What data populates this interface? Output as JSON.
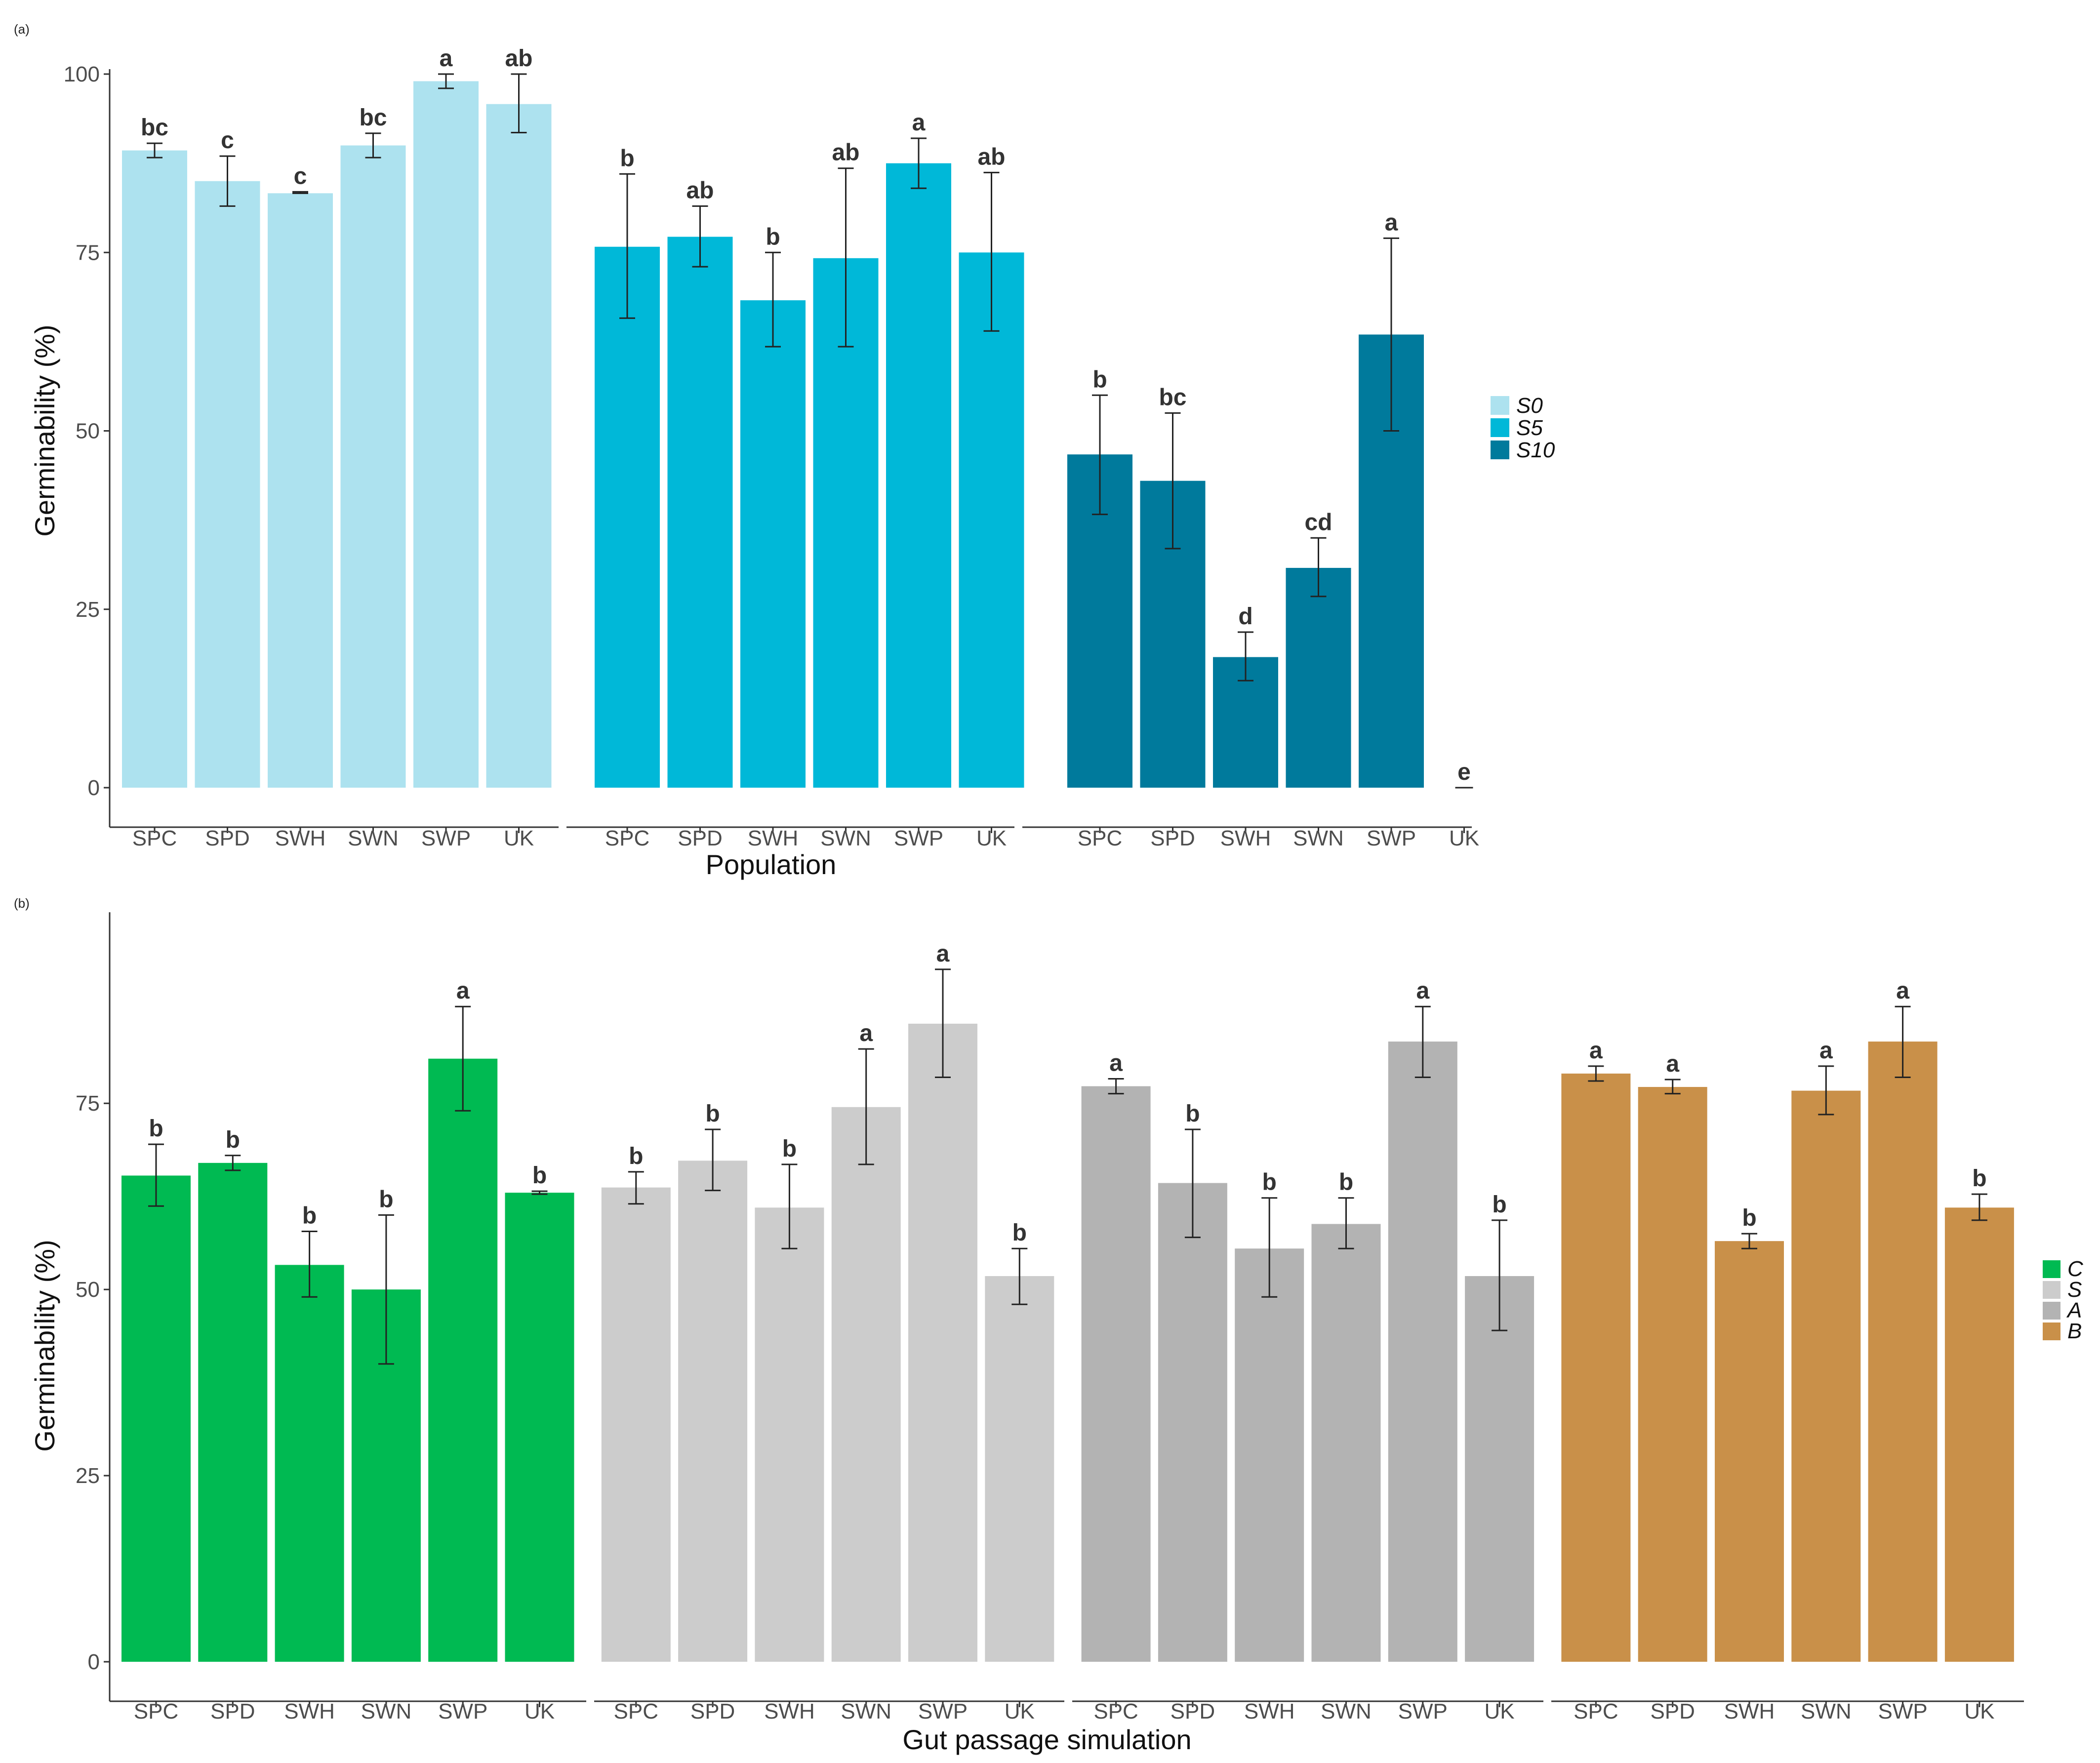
{
  "chart_data": [
    {
      "type": "bar",
      "panel_label": "(a)",
      "xlabel": "Population",
      "ylabel": "Germinability (%)",
      "ylim": [
        0,
        100
      ],
      "yticks": [
        "0",
        "25",
        "50",
        "75",
        "100"
      ],
      "legend_position": "right",
      "categories": [
        "SPC",
        "SPD",
        "SWH",
        "SWN",
        "SWP",
        "UK"
      ],
      "series": [
        {
          "name": "S0",
          "color": "#ADE2EF",
          "values": [
            89.3,
            85.0,
            83.3,
            90.0,
            99.0,
            95.8
          ],
          "err_low": [
            88.3,
            81.5,
            83.3,
            88.3,
            98.0,
            91.8
          ],
          "err_high": [
            90.3,
            88.5,
            83.5,
            91.7,
            100.0,
            100.0
          ],
          "letters": [
            "bc",
            "c",
            "c",
            "bc",
            "a",
            "ab"
          ]
        },
        {
          "name": "S5",
          "color": "#00B8D8",
          "values": [
            75.8,
            77.2,
            68.3,
            74.2,
            87.5,
            75.0
          ],
          "err_low": [
            65.8,
            73.0,
            61.8,
            61.8,
            84.0,
            64.0
          ],
          "err_high": [
            86.0,
            81.5,
            75.0,
            86.8,
            91.0,
            86.2
          ],
          "letters": [
            "b",
            "ab",
            "b",
            "ab",
            "a",
            "ab"
          ]
        },
        {
          "name": "S10",
          "color": "#007A9C",
          "values": [
            46.7,
            43.0,
            18.3,
            30.8,
            63.5,
            0
          ],
          "err_low": [
            38.3,
            33.5,
            15.0,
            26.8,
            50.0,
            0
          ],
          "err_high": [
            55.0,
            52.5,
            21.8,
            35.0,
            77.0,
            0
          ],
          "letters": [
            "b",
            "bc",
            "d",
            "cd",
            "a",
            "e"
          ]
        }
      ]
    },
    {
      "type": "bar",
      "panel_label": "(b)",
      "xlabel": "Gut passage simulation",
      "ylabel": "Germinability (%)",
      "ylim": [
        0,
        98
      ],
      "yticks": [
        "0",
        "25",
        "50",
        "75"
      ],
      "legend_position": "right",
      "categories": [
        "SPC",
        "SPD",
        "SWH",
        "SWN",
        "SWP",
        "UK"
      ],
      "series": [
        {
          "name": "C",
          "color": "#00BA52",
          "values": [
            65.3,
            67.0,
            53.3,
            50.0,
            81.0,
            63.0
          ],
          "err_low": [
            61.2,
            66.0,
            49.0,
            40.0,
            74.0,
            62.8
          ],
          "err_high": [
            69.5,
            68.0,
            57.8,
            60.0,
            88.0,
            63.2
          ],
          "letters": [
            "b",
            "b",
            "b",
            "b",
            "a",
            "b"
          ]
        },
        {
          "name": "S",
          "color": "#CCCCCC",
          "values": [
            63.7,
            67.3,
            61.0,
            74.5,
            85.7,
            51.8
          ],
          "err_low": [
            61.5,
            63.3,
            55.5,
            66.8,
            78.5,
            48.0
          ],
          "err_high": [
            65.8,
            71.5,
            66.8,
            82.3,
            93.0,
            55.5
          ],
          "letters": [
            "b",
            "b",
            "b",
            "a",
            "a",
            "b"
          ]
        },
        {
          "name": "A",
          "color": "#B3B3B3",
          "values": [
            77.3,
            64.3,
            55.5,
            58.8,
            83.3,
            51.8
          ],
          "err_low": [
            76.3,
            57.0,
            49.0,
            55.5,
            78.5,
            44.5
          ],
          "err_high": [
            78.3,
            71.5,
            62.3,
            62.3,
            88.0,
            59.3
          ],
          "letters": [
            "a",
            "b",
            "b",
            "b",
            "a",
            "b"
          ]
        },
        {
          "name": "B",
          "color": "#C99049",
          "values": [
            79.0,
            77.2,
            56.5,
            76.7,
            83.3,
            61.0
          ],
          "err_low": [
            78.0,
            76.3,
            55.5,
            73.5,
            78.5,
            59.3
          ],
          "err_high": [
            80.0,
            78.2,
            57.5,
            80.0,
            88.0,
            62.8
          ],
          "letters": [
            "a",
            "a",
            "b",
            "a",
            "a",
            "b"
          ]
        }
      ]
    }
  ]
}
